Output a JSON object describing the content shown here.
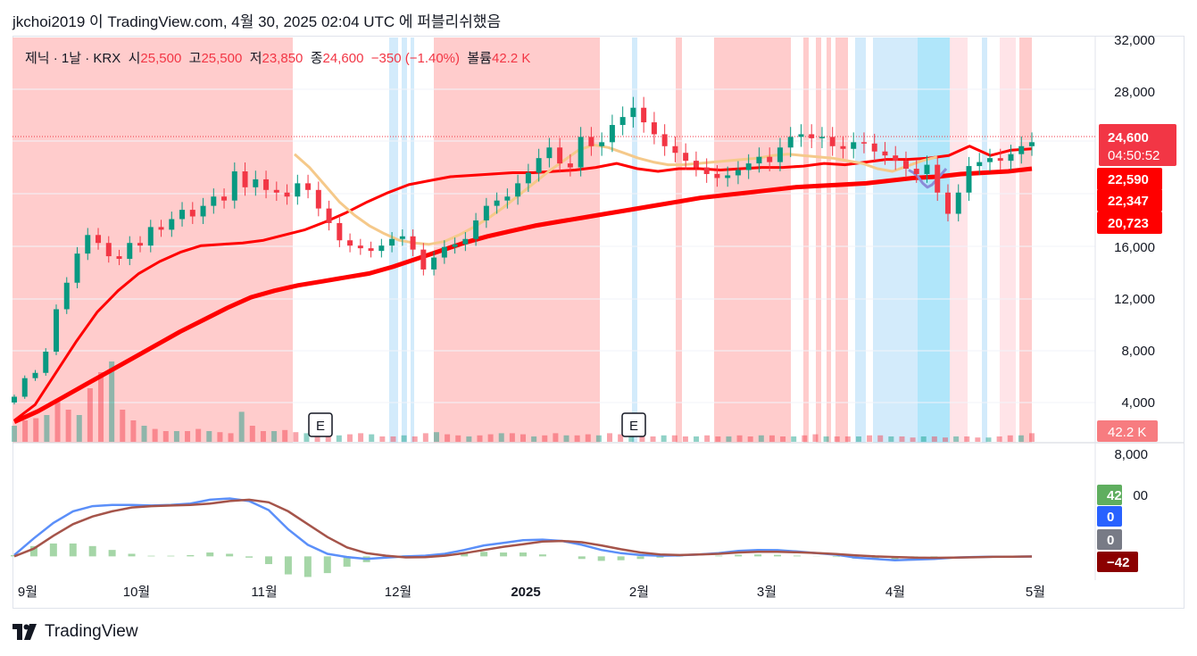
{
  "header": {
    "publish_line": "jkchoi2019 이 TradingView.com, 4월 30, 2025 02:04 UTC 에 퍼블리쉬했음"
  },
  "legend": {
    "symbol": "제닉 · 1날 · KRX",
    "open_label": "시",
    "open": "25,500",
    "high_label": "고",
    "high": "25,500",
    "low_label": "저",
    "low": "23,850",
    "close_label": "종",
    "close": "24,600",
    "change": "−350 (−1.40%)",
    "volume_label": "볼륨",
    "volume": "42.2 K"
  },
  "price_axis": {
    "ticks": [
      "32,000",
      "28,000",
      "16,000",
      "12,000",
      "8,000",
      "4,000"
    ],
    "badges": [
      {
        "value": "24,600",
        "sub": "04:50:52",
        "color": "#f23645"
      },
      {
        "value": "22,590",
        "color": "#ff0000"
      },
      {
        "value": "22,347",
        "color": "#ff0000"
      },
      {
        "value": "20,723",
        "color": "#ff0000"
      }
    ],
    "volume_badge": "42.2 K"
  },
  "macd_axis": {
    "ticks": [
      "8,000",
      "00"
    ],
    "badges": [
      {
        "value": "42",
        "color": "#5fae5f"
      },
      {
        "value": "0",
        "color": "#2962ff"
      },
      {
        "value": "0",
        "color": "#787b86"
      },
      {
        "value": "−42",
        "color": "#8b0000"
      }
    ]
  },
  "time_axis": [
    "9월",
    "10월",
    "11월",
    "12월",
    "2025",
    "2월",
    "3월",
    "4월",
    "5월"
  ],
  "earnings_markers": [
    "E",
    "E"
  ],
  "footer": {
    "brand": "TradingView"
  },
  "chart_data": [
    {
      "type": "candlestick",
      "title": "",
      "symbol": "제닉 · 1날 · KRX",
      "ylim": [
        2000,
        32500
      ],
      "last": {
        "open": 25500,
        "high": 25500,
        "low": 23850,
        "close": 24600,
        "volume": "42.2 K"
      },
      "closes": [
        5400,
        6800,
        7200,
        8800,
        12000,
        14000,
        16200,
        17600,
        17000,
        16000,
        15800,
        17000,
        16800,
        18200,
        18000,
        18800,
        19500,
        19000,
        19800,
        20500,
        20200,
        22400,
        21200,
        21800,
        21000,
        20800,
        20500,
        21500,
        21000,
        19600,
        18500,
        17200,
        16800,
        16600,
        16400,
        16800,
        17300,
        17500,
        16500,
        15000,
        15900,
        16700,
        16900,
        17300,
        18700,
        19800,
        20200,
        20500,
        21500,
        22300,
        23400,
        24200,
        23000,
        22700,
        25000,
        24300,
        24600,
        25900,
        26500,
        27200,
        26100,
        25200,
        24300,
        23800,
        23200,
        22700,
        22200,
        21900,
        22100,
        22500,
        23000,
        23500,
        23100,
        24200,
        25000,
        25200,
        24900,
        25000,
        24300,
        24100,
        24600,
        24500,
        23900,
        23600,
        23200,
        22600,
        22200,
        22900,
        20800,
        19200,
        20800,
        22800,
        23100,
        23400,
        23200,
        23700,
        24300,
        24600
      ],
      "series": [
        {
          "name": "",
          "color": "#ff0000",
          "values": [
            3600,
            4800,
            7200,
            9600,
            11800,
            13400,
            14700,
            15600,
            16300,
            16800,
            16900,
            17000,
            17200,
            17600,
            18000,
            18600,
            19300,
            20100,
            20800,
            21400,
            21700,
            22000,
            22100,
            22200,
            22300,
            22300,
            22400,
            22500,
            22700,
            23000,
            22600,
            22400,
            22600,
            22600,
            22500,
            22600,
            22700,
            22700,
            22800,
            23000,
            22900,
            23100,
            23300,
            23300,
            23400,
            23600,
            24300,
            23600,
            24000,
            24100
          ]
        },
        {
          "name": "",
          "color": "#ff0000",
          "values": [
            3500,
            4300,
            5300,
            6300,
            7300,
            8300,
            9300,
            10300,
            11200,
            12100,
            12900,
            13400,
            13800,
            14100,
            14400,
            14700,
            15200,
            15800,
            16400,
            17000,
            17500,
            17900,
            18300,
            18600,
            18900,
            19200,
            19500,
            19800,
            20100,
            20400,
            20600,
            20800,
            21000,
            21200,
            21300,
            21400,
            21500,
            21700,
            21900,
            22000,
            22200,
            22300,
            22400,
            22600
          ]
        },
        {
          "name": "",
          "color": "#f5c98a",
          "values": [
            23700,
            22700,
            21400,
            20100,
            19100,
            18300,
            17700,
            17200,
            17000,
            16900,
            17100,
            17600,
            18200,
            18900,
            19700,
            20600,
            21500,
            22400,
            23200,
            24000,
            24400,
            24200,
            23800,
            23400,
            23100,
            22900,
            22900,
            23000,
            23100,
            23200,
            23300,
            23400,
            23600,
            23700,
            23600,
            23500,
            23400,
            23200,
            23000,
            22600,
            22400,
            22800,
            23200,
            23500
          ]
        },
        {
          "name": "",
          "color": "#8b8bd8",
          "values": [
            22500,
            22300,
            22000,
            21500,
            21200,
            21400,
            21800,
            22200,
            22600
          ]
        }
      ]
    },
    {
      "type": "bar",
      "title": "",
      "ylabel": "",
      "values": [
        1.5,
        2,
        2.2,
        2.5,
        4,
        3,
        2.5,
        5,
        6.5,
        7.5,
        3,
        2,
        1.5,
        1.2,
        1,
        1,
        1,
        1.2,
        1,
        0.9,
        0.8,
        2.8,
        1.5,
        1,
        1,
        1.1,
        0.9,
        0.8,
        0.7,
        0.6,
        0.6,
        0.7,
        0.8,
        0.7,
        0.5,
        0.5,
        0.6,
        0.5,
        0.8,
        0.9,
        0.7,
        0.6,
        0.5,
        0.6,
        0.7,
        0.8,
        0.8,
        0.7,
        0.5,
        0.6,
        0.8,
        0.6,
        0.6,
        0.7,
        0.6,
        0.8,
        0.7,
        0.6,
        0.6,
        0.5,
        0.6,
        0.6,
        0.5,
        0.5,
        0.6,
        0.5,
        0.5,
        0.6,
        0.5,
        0.6,
        0.6,
        0.5,
        0.5,
        0.6,
        0.7,
        0.5,
        0.5,
        0.5,
        0.5,
        0.6,
        0.6,
        0.5,
        0.5,
        0.4,
        0.5,
        0.5,
        0.4,
        0.5,
        0.5,
        0.4,
        0.4,
        0.5,
        0.6,
        0.6,
        0.8
      ]
    },
    {
      "type": "line",
      "title": "",
      "ylim": [
        -1500,
        8000
      ],
      "series": [
        {
          "name": "",
          "color": "#5b8ff9",
          "values": [
            100,
            1400,
            2600,
            3500,
            3900,
            4000,
            4000,
            3950,
            4000,
            4100,
            4400,
            4500,
            4300,
            3600,
            2100,
            900,
            200,
            -50,
            -200,
            -100,
            0,
            50,
            200,
            500,
            850,
            1050,
            1250,
            1300,
            1200,
            900,
            500,
            250,
            100,
            50,
            80,
            150,
            250,
            420,
            500,
            480,
            380,
            250,
            130,
            -100,
            -200,
            -300,
            -250,
            -200,
            -100,
            -50,
            -30,
            -20,
            -10
          ]
        },
        {
          "name": "",
          "color": "#a5544a",
          "values": [
            0,
            600,
            1600,
            2500,
            3100,
            3500,
            3800,
            3900,
            3950,
            4000,
            4100,
            4300,
            4400,
            4200,
            3500,
            2500,
            1500,
            700,
            250,
            50,
            -80,
            -60,
            50,
            250,
            500,
            750,
            950,
            1150,
            1200,
            1100,
            850,
            550,
            300,
            150,
            100,
            150,
            200,
            300,
            350,
            360,
            320,
            260,
            180,
            80,
            0,
            -50,
            -100,
            -110,
            -100,
            -70,
            -40,
            -20,
            -10
          ]
        },
        {
          "name": "",
          "color": "#6fbf6f",
          "values": [
            100,
            800,
            1000,
            1000,
            800,
            500,
            200,
            50,
            50,
            100,
            300,
            200,
            -100,
            -600,
            -1400,
            -1600,
            -1300,
            -800,
            -450,
            -150,
            80,
            110,
            150,
            250,
            350,
            300,
            300,
            150,
            0,
            -200,
            -350,
            -300,
            -200,
            -100,
            -20,
            0,
            50,
            120,
            150,
            120,
            60,
            -10,
            -50,
            -180,
            -200,
            -250,
            -150,
            -90,
            0,
            20,
            10,
            0,
            0
          ]
        }
      ],
      "last_values": {
        "histogram": "42",
        "macd": "0",
        "signal": "0",
        "diff": "−42"
      }
    }
  ]
}
